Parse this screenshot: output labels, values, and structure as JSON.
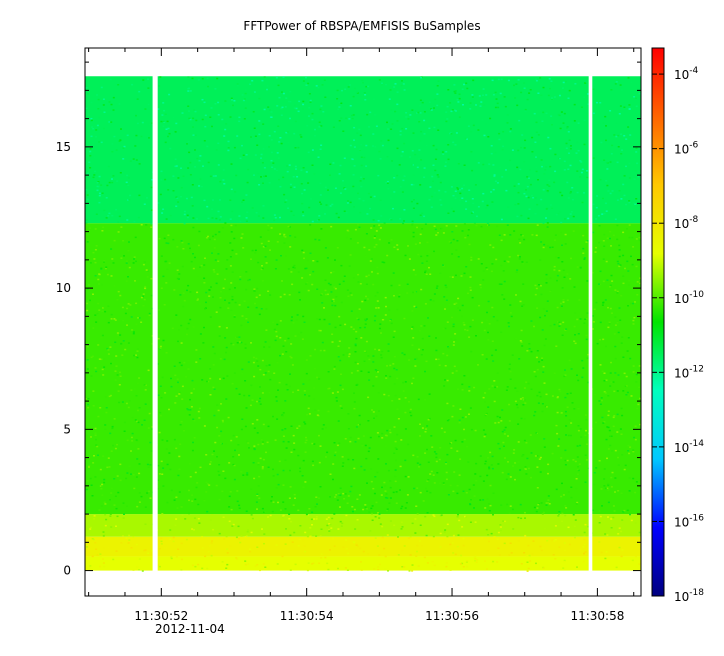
{
  "chart_data": {
    "type": "heatmap",
    "title": "FFTPower of RBSPA/EMFISIS  BuSamples",
    "xlabel": "",
    "ylabel": "",
    "x_ticks": [
      "11:30:52",
      "11:30:54",
      "11:30:56",
      "11:30:58"
    ],
    "x_tick_values_s": [
      52,
      54,
      56,
      58
    ],
    "x_date_label": "2012-11-04",
    "xlim_s": [
      50.95,
      58.6
    ],
    "y_ticks": [
      "0",
      "5",
      "10",
      "15"
    ],
    "y_tick_values": [
      0,
      5,
      10,
      15
    ],
    "ylim": [
      -0.9,
      18.5
    ],
    "data_extent": {
      "x_s": [
        50.95,
        58.6
      ],
      "y": [
        0.0,
        17.5
      ]
    },
    "gaps_x_s": [
      [
        51.88,
        51.95
      ],
      [
        57.88,
        57.93
      ]
    ],
    "bands": [
      {
        "y_range": [
          0.0,
          0.5
        ],
        "log10_power": -8.8
      },
      {
        "y_range": [
          0.5,
          1.2
        ],
        "log10_power": -8.4
      },
      {
        "y_range": [
          1.2,
          2.0
        ],
        "log10_power": -9.3
      },
      {
        "y_range": [
          2.0,
          12.3
        ],
        "log10_power": -10.2
      },
      {
        "y_range": [
          12.3,
          17.5
        ],
        "log10_power": -11.5
      }
    ],
    "colorbar": {
      "scale": "log",
      "range_log10": [
        -18,
        -3.3
      ],
      "tick_base": "10",
      "tick_exponents": [
        "-4",
        "-6",
        "-8",
        "-10",
        "-12",
        "-14",
        "-16",
        "-18"
      ],
      "colormap": [
        "#00007f",
        "#0000ff",
        "#00c8ff",
        "#00ffbe",
        "#00e400",
        "#e6ff00",
        "#ffc800",
        "#ff6400",
        "#ff0000"
      ]
    }
  }
}
